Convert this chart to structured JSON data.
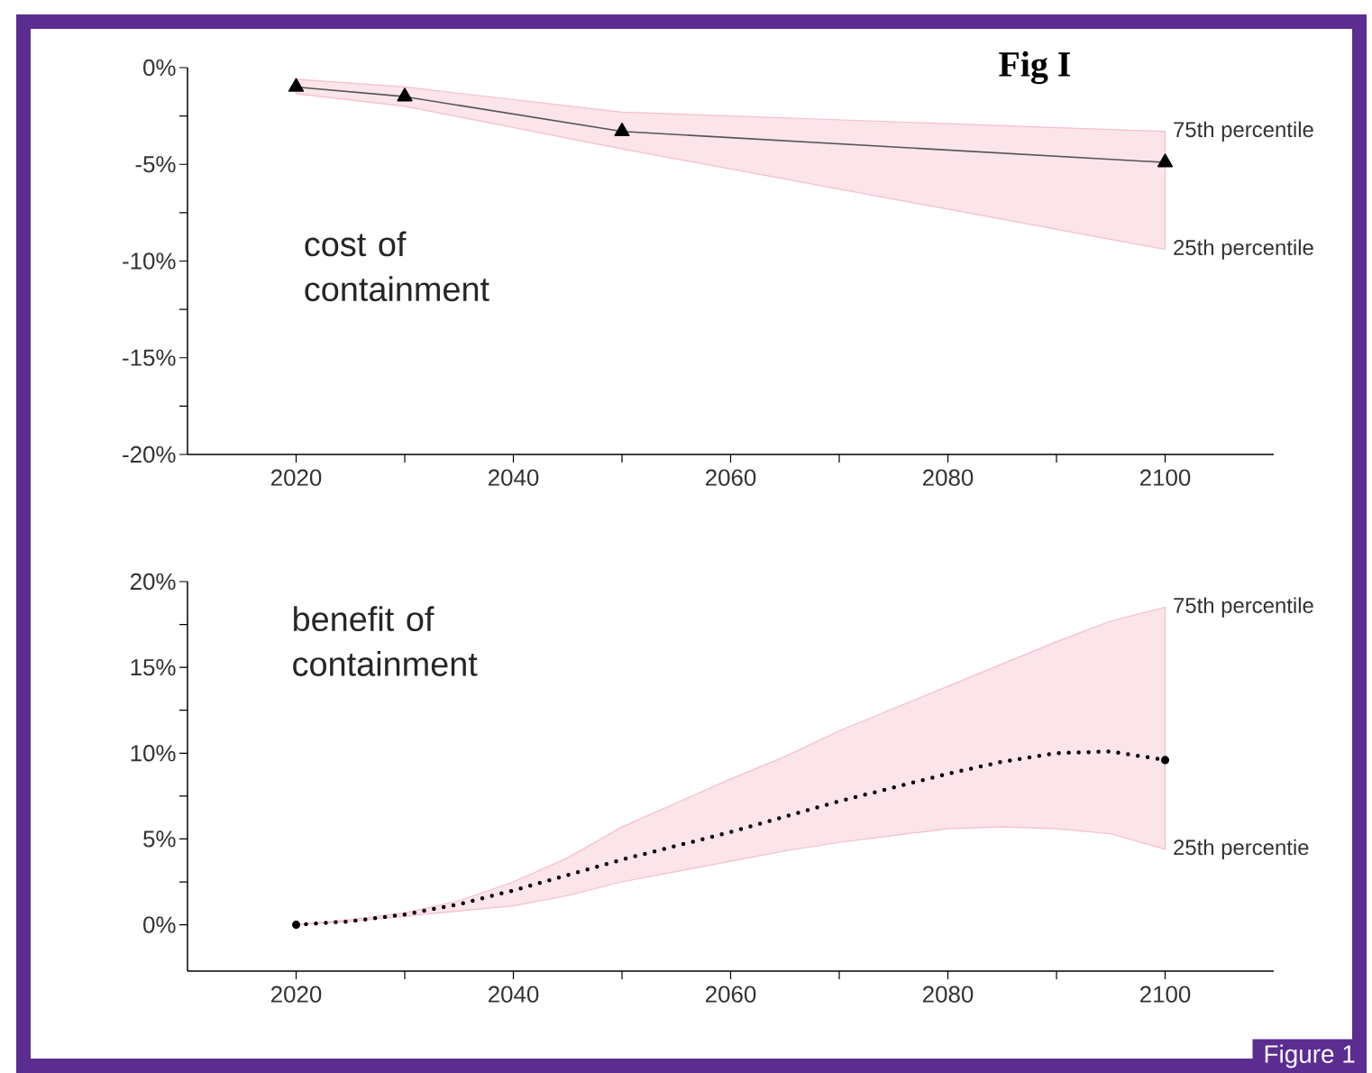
{
  "chart_data": [
    {
      "type": "line",
      "title": "cost of containment",
      "marker": "triangle",
      "xlim": [
        2010,
        2110
      ],
      "ylim": [
        -20,
        0
      ],
      "xticks": [
        2020,
        {
          "value": 2030,
          "label": null
        },
        2040,
        {
          "value": 2050,
          "label": null
        },
        2060,
        {
          "value": 2070,
          "label": null
        },
        2080,
        {
          "value": 2090,
          "label": null
        },
        2100
      ],
      "yticks": [
        {
          "value": 0,
          "label": "0%"
        },
        {
          "value": -2.5,
          "label": null
        },
        {
          "value": -5,
          "label": "-5%"
        },
        {
          "value": -7.5,
          "label": null
        },
        {
          "value": -10,
          "label": "-10%"
        },
        {
          "value": -12.5,
          "label": null
        },
        {
          "value": -15,
          "label": "-15%"
        },
        {
          "value": -17.5,
          "label": null
        },
        {
          "value": -20,
          "label": "-20%"
        }
      ],
      "series": [
        {
          "color": "#555555",
          "x": [
            2020,
            2030,
            2050,
            2100
          ],
          "values": [
            -1.0,
            -1.5,
            -3.3,
            -4.9
          ],
          "upper": [
            -0.6,
            -1.0,
            -2.3,
            -3.3
          ],
          "lower": [
            -1.35,
            -2.0,
            -4.2,
            -9.4
          ]
        }
      ],
      "annotations": [
        "Fig I",
        "75th percentile",
        "25th percentile"
      ]
    },
    {
      "type": "line",
      "title": "benefit of containment",
      "line_style": "dotted",
      "xlim": [
        2010,
        2110
      ],
      "ylim": [
        -2.7,
        20
      ],
      "xticks": [
        2020,
        {
          "value": 2030,
          "label": null
        },
        2040,
        {
          "value": 2050,
          "label": null
        },
        2060,
        {
          "value": 2070,
          "label": null
        },
        2080,
        {
          "value": 2090,
          "label": null
        },
        2100
      ],
      "yticks": [
        {
          "value": 0,
          "label": "0%"
        },
        {
          "value": 2.5,
          "label": null
        },
        {
          "value": 5,
          "label": "5%"
        },
        {
          "value": 7.5,
          "label": null
        },
        {
          "value": 10,
          "label": "10%"
        },
        {
          "value": 12.5,
          "label": null
        },
        {
          "value": 15,
          "label": "15%"
        },
        {
          "value": 17.5,
          "label": null
        },
        {
          "value": 20,
          "label": "20%"
        }
      ],
      "series": [
        {
          "color": "#000000",
          "x": [
            2020,
            2025,
            2030,
            2035,
            2040,
            2045,
            2050,
            2055,
            2060,
            2065,
            2070,
            2075,
            2080,
            2085,
            2090,
            2095,
            2100
          ],
          "values": [
            0,
            0.2,
            0.6,
            1.2,
            2.0,
            2.9,
            3.8,
            4.6,
            5.4,
            6.3,
            7.2,
            8.0,
            8.8,
            9.5,
            10.0,
            10.1,
            9.6
          ],
          "upper": [
            0,
            0.3,
            0.7,
            1.4,
            2.5,
            3.9,
            5.7,
            7.1,
            8.5,
            9.8,
            11.3,
            12.6,
            13.9,
            15.2,
            16.5,
            17.7,
            18.5
          ],
          "lower": [
            0,
            0.2,
            0.5,
            0.8,
            1.1,
            1.7,
            2.5,
            3.1,
            3.7,
            4.3,
            4.8,
            5.2,
            5.6,
            5.7,
            5.6,
            5.3,
            4.4
          ]
        }
      ],
      "annotations": [
        "Figure 1",
        "75th percentile",
        "25th percentie"
      ]
    }
  ]
}
